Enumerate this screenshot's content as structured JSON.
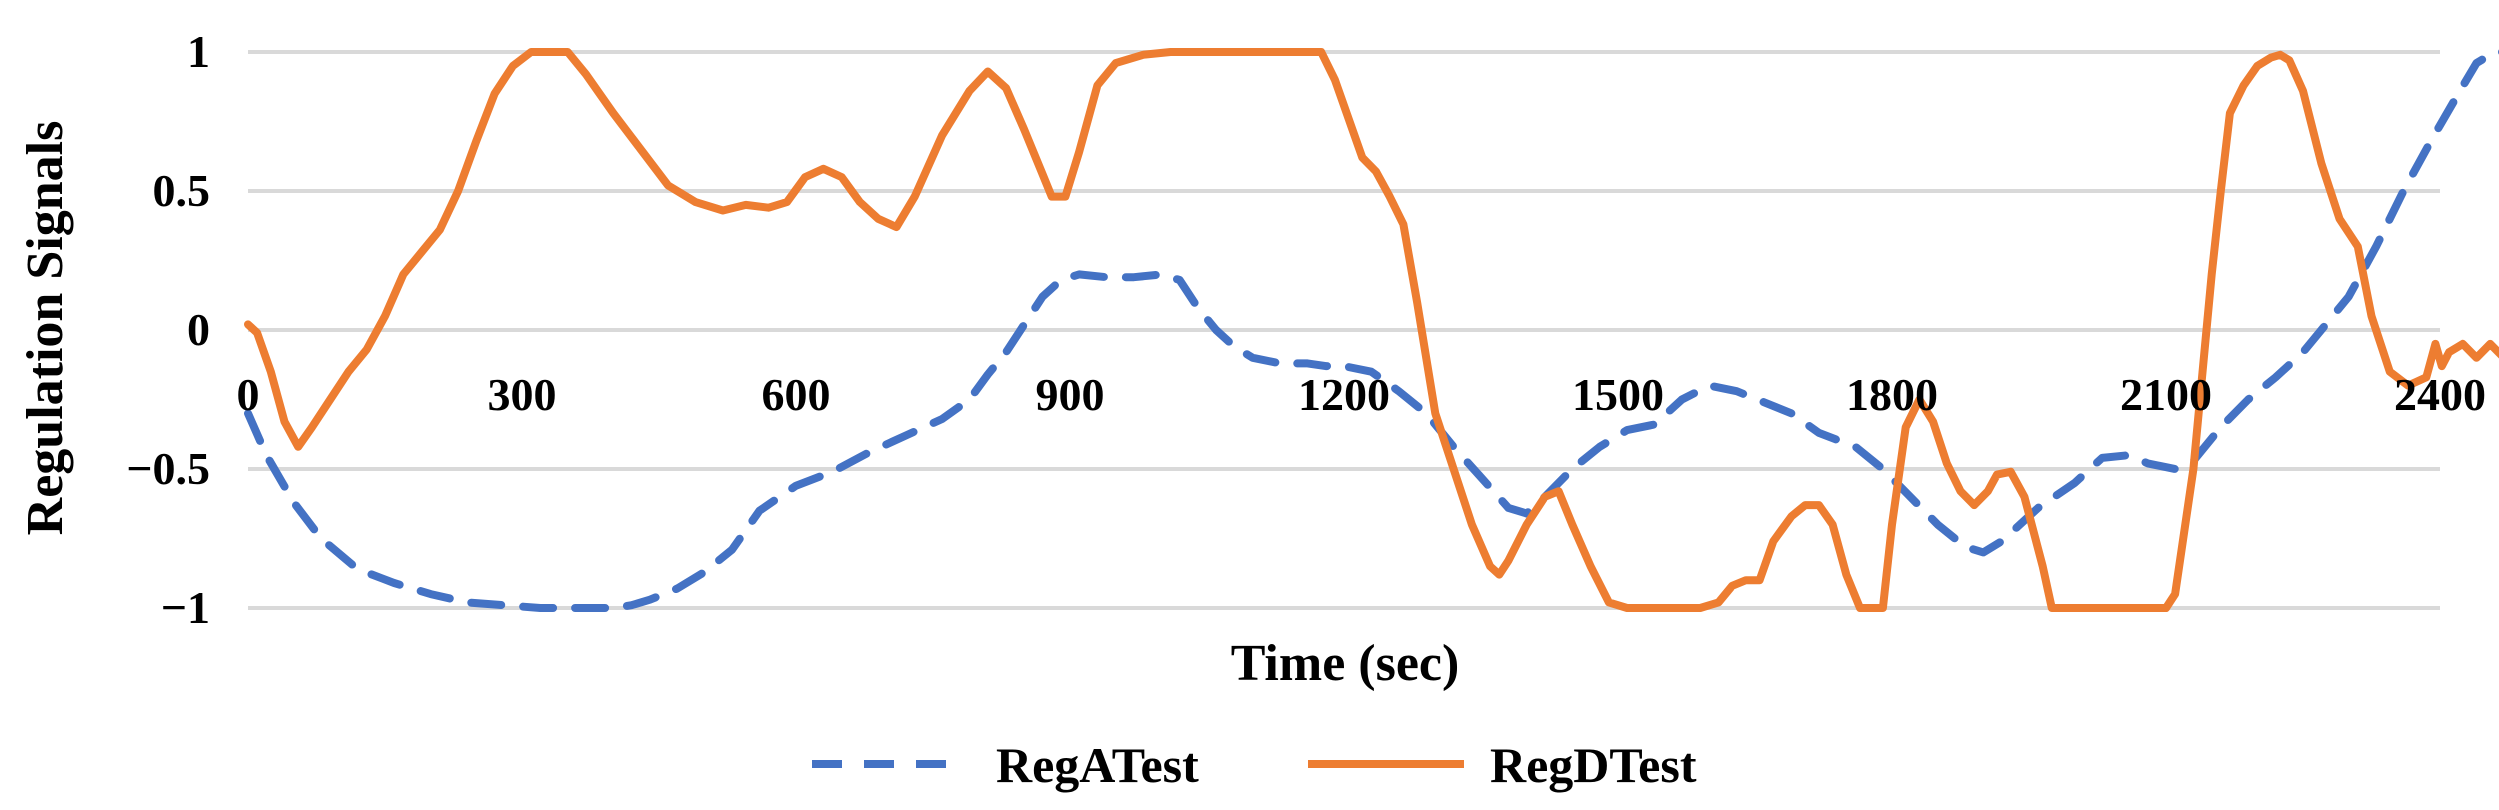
{
  "chart_data": {
    "type": "line",
    "title": "",
    "xlabel": "Time (sec)",
    "ylabel": "Regulation Signals",
    "xlim": [
      0,
      2400
    ],
    "ylim": [
      -1,
      1
    ],
    "x_ticks": [
      0,
      300,
      600,
      900,
      1200,
      1500,
      1800,
      2100,
      2400
    ],
    "x_tick_labels": [
      "0",
      "300",
      "600",
      "900",
      "1200",
      "1500",
      "1800",
      "2100",
      "2400"
    ],
    "y_ticks": [
      1,
      0.5,
      0,
      -0.5,
      -1
    ],
    "y_tick_labels": [
      "1",
      "0.5",
      "0",
      "−0.5",
      "−1"
    ],
    "grid": "horizontal",
    "legend_position": "bottom",
    "series": [
      {
        "name": "RegATest",
        "color": "#4472c4",
        "dash": "dashed",
        "points": [
          [
            0,
            -0.3
          ],
          [
            20,
            -0.45
          ],
          [
            50,
            -0.62
          ],
          [
            80,
            -0.75
          ],
          [
            120,
            -0.86
          ],
          [
            160,
            -0.91
          ],
          [
            200,
            -0.95
          ],
          [
            240,
            -0.98
          ],
          [
            280,
            -0.99
          ],
          [
            320,
            -1.0
          ],
          [
            360,
            -1.0
          ],
          [
            400,
            -1.0
          ],
          [
            420,
            -0.99
          ],
          [
            440,
            -0.97
          ],
          [
            470,
            -0.93
          ],
          [
            500,
            -0.87
          ],
          [
            530,
            -0.79
          ],
          [
            560,
            -0.65
          ],
          [
            600,
            -0.56
          ],
          [
            640,
            -0.51
          ],
          [
            680,
            -0.44
          ],
          [
            720,
            -0.38
          ],
          [
            760,
            -0.32
          ],
          [
            790,
            -0.25
          ],
          [
            810,
            -0.16
          ],
          [
            830,
            -0.08
          ],
          [
            850,
            0.02
          ],
          [
            870,
            0.12
          ],
          [
            890,
            0.18
          ],
          [
            910,
            0.2
          ],
          [
            940,
            0.19
          ],
          [
            970,
            0.19
          ],
          [
            1000,
            0.2
          ],
          [
            1020,
            0.18
          ],
          [
            1040,
            0.08
          ],
          [
            1060,
            0.0
          ],
          [
            1080,
            -0.06
          ],
          [
            1100,
            -0.1
          ],
          [
            1130,
            -0.12
          ],
          [
            1160,
            -0.12
          ],
          [
            1180,
            -0.13
          ],
          [
            1200,
            -0.13
          ],
          [
            1230,
            -0.15
          ],
          [
            1260,
            -0.22
          ],
          [
            1290,
            -0.3
          ],
          [
            1320,
            -0.42
          ],
          [
            1350,
            -0.53
          ],
          [
            1380,
            -0.64
          ],
          [
            1400,
            -0.66
          ],
          [
            1420,
            -0.6
          ],
          [
            1450,
            -0.5
          ],
          [
            1480,
            -0.42
          ],
          [
            1510,
            -0.36
          ],
          [
            1540,
            -0.34
          ],
          [
            1570,
            -0.25
          ],
          [
            1600,
            -0.2
          ],
          [
            1630,
            -0.22
          ],
          [
            1660,
            -0.26
          ],
          [
            1690,
            -0.3
          ],
          [
            1720,
            -0.37
          ],
          [
            1760,
            -0.42
          ],
          [
            1790,
            -0.5
          ],
          [
            1820,
            -0.6
          ],
          [
            1850,
            -0.7
          ],
          [
            1880,
            -0.78
          ],
          [
            1900,
            -0.8
          ],
          [
            1920,
            -0.76
          ],
          [
            1960,
            -0.64
          ],
          [
            2000,
            -0.55
          ],
          [
            2030,
            -0.46
          ],
          [
            2060,
            -0.45
          ],
          [
            2080,
            -0.48
          ],
          [
            2110,
            -0.5
          ],
          [
            2130,
            -0.47
          ],
          [
            2160,
            -0.35
          ],
          [
            2190,
            -0.25
          ],
          [
            2220,
            -0.17
          ],
          [
            2250,
            -0.08
          ],
          [
            2270,
            0.0
          ],
          [
            2300,
            0.12
          ],
          [
            2330,
            0.3
          ],
          [
            2360,
            0.5
          ],
          [
            2390,
            0.68
          ],
          [
            2420,
            0.85
          ],
          [
            2440,
            0.96
          ],
          [
            2460,
            1.0
          ],
          [
            2480,
            1.0
          ],
          [
            2500,
            1.0
          ]
        ]
      },
      {
        "name": "RegDTest",
        "color": "#ed7d31",
        "dash": "solid",
        "points": [
          [
            0,
            0.02
          ],
          [
            10,
            -0.01
          ],
          [
            25,
            -0.15
          ],
          [
            40,
            -0.33
          ],
          [
            55,
            -0.42
          ],
          [
            70,
            -0.35
          ],
          [
            90,
            -0.25
          ],
          [
            110,
            -0.15
          ],
          [
            130,
            -0.07
          ],
          [
            150,
            0.05
          ],
          [
            170,
            0.2
          ],
          [
            190,
            0.28
          ],
          [
            210,
            0.36
          ],
          [
            230,
            0.5
          ],
          [
            250,
            0.68
          ],
          [
            270,
            0.85
          ],
          [
            290,
            0.95
          ],
          [
            310,
            1.0
          ],
          [
            330,
            1.0
          ],
          [
            350,
            1.0
          ],
          [
            370,
            0.92
          ],
          [
            400,
            0.78
          ],
          [
            430,
            0.65
          ],
          [
            460,
            0.52
          ],
          [
            490,
            0.46
          ],
          [
            520,
            0.43
          ],
          [
            545,
            0.45
          ],
          [
            570,
            0.44
          ],
          [
            590,
            0.46
          ],
          [
            610,
            0.55
          ],
          [
            630,
            0.58
          ],
          [
            650,
            0.55
          ],
          [
            670,
            0.46
          ],
          [
            690,
            0.4
          ],
          [
            710,
            0.37
          ],
          [
            730,
            0.48
          ],
          [
            760,
            0.7
          ],
          [
            790,
            0.86
          ],
          [
            810,
            0.93
          ],
          [
            830,
            0.87
          ],
          [
            850,
            0.72
          ],
          [
            870,
            0.56
          ],
          [
            880,
            0.48
          ],
          [
            895,
            0.48
          ],
          [
            910,
            0.64
          ],
          [
            930,
            0.88
          ],
          [
            950,
            0.96
          ],
          [
            980,
            0.99
          ],
          [
            1010,
            1.0
          ],
          [
            1100,
            1.0
          ],
          [
            1150,
            1.0
          ],
          [
            1175,
            1.0
          ],
          [
            1190,
            0.9
          ],
          [
            1205,
            0.76
          ],
          [
            1220,
            0.62
          ],
          [
            1235,
            0.57
          ],
          [
            1250,
            0.48
          ],
          [
            1265,
            0.38
          ],
          [
            1280,
            0.1
          ],
          [
            1300,
            -0.3
          ],
          [
            1320,
            -0.5
          ],
          [
            1340,
            -0.7
          ],
          [
            1360,
            -0.85
          ],
          [
            1370,
            -0.88
          ],
          [
            1380,
            -0.83
          ],
          [
            1400,
            -0.7
          ],
          [
            1420,
            -0.6
          ],
          [
            1435,
            -0.58
          ],
          [
            1450,
            -0.7
          ],
          [
            1470,
            -0.85
          ],
          [
            1490,
            -0.98
          ],
          [
            1510,
            -1.0
          ],
          [
            1550,
            -1.0
          ],
          [
            1590,
            -1.0
          ],
          [
            1610,
            -0.98
          ],
          [
            1625,
            -0.92
          ],
          [
            1640,
            -0.9
          ],
          [
            1655,
            -0.9
          ],
          [
            1670,
            -0.76
          ],
          [
            1690,
            -0.67
          ],
          [
            1705,
            -0.63
          ],
          [
            1720,
            -0.63
          ],
          [
            1735,
            -0.7
          ],
          [
            1750,
            -0.88
          ],
          [
            1765,
            -1.0
          ],
          [
            1790,
            -1.0
          ],
          [
            1800,
            -0.7
          ],
          [
            1815,
            -0.35
          ],
          [
            1830,
            -0.25
          ],
          [
            1845,
            -0.33
          ],
          [
            1860,
            -0.48
          ],
          [
            1875,
            -0.58
          ],
          [
            1890,
            -0.63
          ],
          [
            1905,
            -0.58
          ],
          [
            1915,
            -0.52
          ],
          [
            1930,
            -0.51
          ],
          [
            1945,
            -0.6
          ],
          [
            1965,
            -0.85
          ],
          [
            1975,
            -1.0
          ],
          [
            2000,
            -1.0
          ],
          [
            2050,
            -1.0
          ],
          [
            2100,
            -1.0
          ],
          [
            2110,
            -0.95
          ],
          [
            2130,
            -0.5
          ],
          [
            2150,
            0.2
          ],
          [
            2160,
            0.5
          ],
          [
            2170,
            0.78
          ],
          [
            2185,
            0.88
          ],
          [
            2200,
            0.95
          ],
          [
            2215,
            0.98
          ],
          [
            2225,
            0.99
          ],
          [
            2235,
            0.97
          ],
          [
            2250,
            0.86
          ],
          [
            2270,
            0.6
          ],
          [
            2290,
            0.4
          ],
          [
            2310,
            0.3
          ],
          [
            2325,
            0.05
          ],
          [
            2345,
            -0.15
          ],
          [
            2365,
            -0.2
          ],
          [
            2385,
            -0.17
          ],
          [
            2395,
            -0.05
          ],
          [
            2402,
            -0.13
          ],
          [
            2410,
            -0.08
          ],
          [
            2425,
            -0.05
          ],
          [
            2440,
            -0.1
          ],
          [
            2455,
            -0.05
          ],
          [
            2470,
            -0.1
          ],
          [
            2485,
            -0.05
          ],
          [
            2500,
            -0.1
          ]
        ]
      }
    ]
  }
}
